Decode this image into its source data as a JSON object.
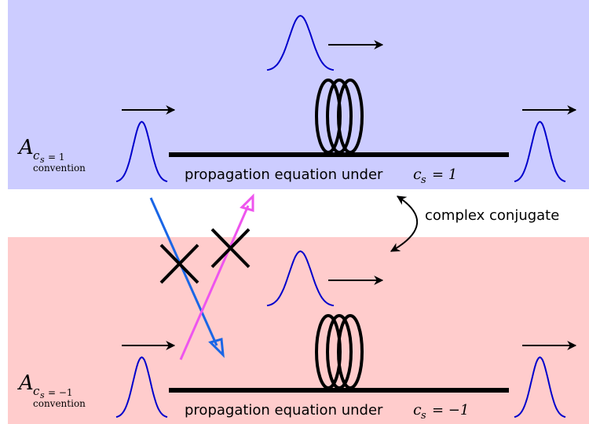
{
  "top": {
    "symbol": "A",
    "sub_var": "c",
    "sub_index": "s",
    "sub_value": "= 1",
    "note": "convention",
    "caption": "propagation equation under",
    "eq_var": "c",
    "eq_index": "s",
    "eq_value": "= 1"
  },
  "middle": {
    "label": "complex conjugate"
  },
  "bottom": {
    "symbol": "A",
    "sub_var": "c",
    "sub_index": "s",
    "sub_value": "= −1",
    "note": "convention",
    "caption": "propagation equation under",
    "eq_var": "c",
    "eq_index": "s",
    "eq_value": "= −1"
  }
}
